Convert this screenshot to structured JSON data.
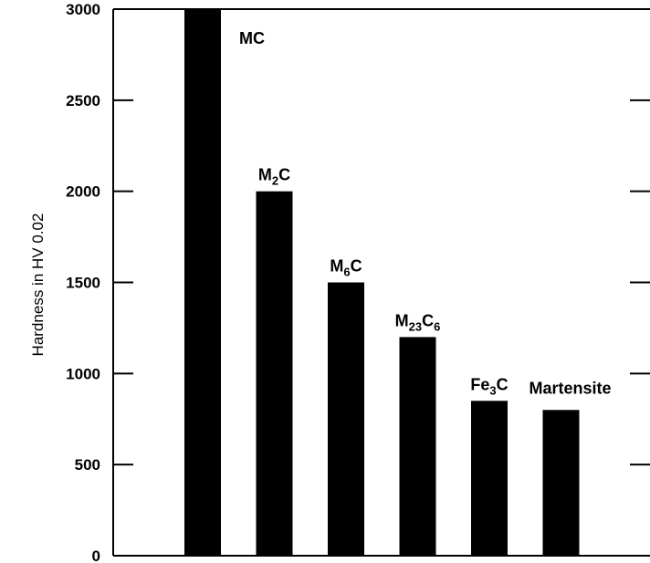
{
  "chart_data": {
    "type": "bar",
    "title": "",
    "xlabel": "",
    "ylabel": "Hardness in HV 0.02",
    "ylim": [
      0,
      3000
    ],
    "yticks": [
      0,
      500,
      1000,
      1500,
      2000,
      2500,
      3000
    ],
    "grid": false,
    "categories": [
      {
        "main": "MC",
        "sub": ""
      },
      {
        "main": "M",
        "sub": "2",
        "tail": "C"
      },
      {
        "main": "M",
        "sub": "6",
        "tail": "C"
      },
      {
        "main": "M",
        "sub": "23",
        "tail": "C",
        "sub2": "6"
      },
      {
        "main": "Fe",
        "sub": "3",
        "tail": "C"
      },
      {
        "main": "Martensite",
        "sub": ""
      }
    ],
    "category_names": [
      "MC",
      "M2C",
      "M6C",
      "M23C6",
      "Fe3C",
      "Martensite"
    ],
    "values": [
      3000,
      2000,
      1500,
      1200,
      850,
      800
    ],
    "bar_color": "#000000"
  }
}
